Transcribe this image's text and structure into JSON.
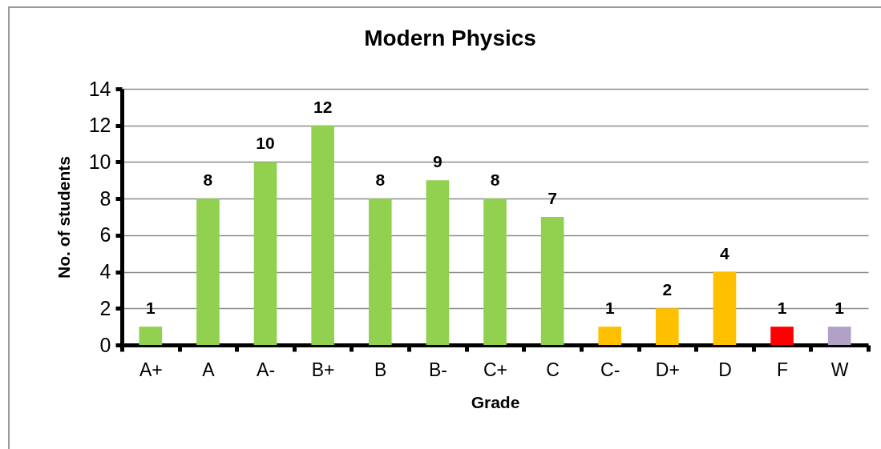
{
  "chart_data": {
    "type": "bar",
    "title": "Modern Physics",
    "xlabel": "Grade",
    "ylabel": "No. of students",
    "categories": [
      "A+",
      "A",
      "A-",
      "B+",
      "B",
      "B-",
      "C+",
      "C",
      "C-",
      "D+",
      "D",
      "F",
      "W"
    ],
    "values": [
      1,
      8,
      10,
      12,
      8,
      9,
      8,
      7,
      1,
      2,
      4,
      1,
      1
    ],
    "colors": [
      "#92d050",
      "#92d050",
      "#92d050",
      "#92d050",
      "#92d050",
      "#92d050",
      "#92d050",
      "#92d050",
      "#ffc000",
      "#ffc000",
      "#ffc000",
      "#ff0000",
      "#b2a1c7"
    ],
    "ylim": [
      0,
      14
    ],
    "yticks": [
      0,
      2,
      4,
      6,
      8,
      10,
      12,
      14
    ],
    "grid": "y",
    "data_labels": true
  }
}
